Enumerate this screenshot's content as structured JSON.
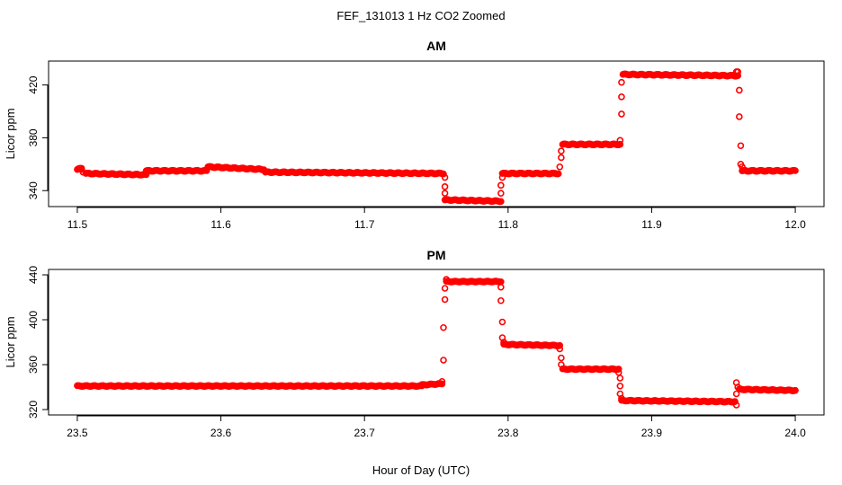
{
  "figure": {
    "title": "FEF_131013  1 Hz CO2 Zoomed",
    "xlabel": "Hour of Day (UTC)"
  },
  "chart_data": [
    {
      "type": "scatter",
      "title": "AM",
      "xlabel": "",
      "ylabel": "Licor ppm",
      "xlim": [
        11.5,
        12.0
      ],
      "ylim": [
        332,
        434
      ],
      "xticks": [
        "11.5",
        "11.6",
        "11.7",
        "11.8",
        "11.9",
        "12.0"
      ],
      "xtick_values": [
        11.5,
        11.6,
        11.7,
        11.8,
        11.9,
        12.0
      ],
      "yticks": [
        "340",
        "380",
        "420"
      ],
      "ytick_values": [
        340,
        380,
        420
      ],
      "marker_color": "#ff0000",
      "marker": "open-circle",
      "grid": false,
      "segments": [
        {
          "x": [
            11.5,
            11.503
          ],
          "y": [
            356,
            357
          ]
        },
        {
          "x": [
            11.506,
            11.548
          ],
          "y": [
            353,
            352
          ]
        },
        {
          "x": [
            11.548,
            11.59
          ],
          "y": [
            355,
            355
          ]
        },
        {
          "x": [
            11.591,
            11.63
          ],
          "y": [
            358,
            356
          ]
        },
        {
          "x": [
            11.631,
            11.755
          ],
          "y": [
            354,
            353
          ]
        },
        {
          "x": [
            11.756,
            11.795
          ],
          "y": [
            333,
            332
          ]
        },
        {
          "x": [
            11.796,
            11.835
          ],
          "y": [
            353,
            353
          ]
        },
        {
          "x": [
            11.838,
            11.878
          ],
          "y": [
            375,
            375
          ]
        },
        {
          "x": [
            11.88,
            11.96
          ],
          "y": [
            428,
            427
          ]
        },
        {
          "x": [
            11.963,
            12.0
          ],
          "y": [
            355,
            355
          ]
        }
      ],
      "transitions": [
        {
          "x": 11.503,
          "y": 356
        },
        {
          "x": 11.504,
          "y": 354
        },
        {
          "x": 11.756,
          "y": 350
        },
        {
          "x": 11.756,
          "y": 343
        },
        {
          "x": 11.756,
          "y": 338
        },
        {
          "x": 11.795,
          "y": 338
        },
        {
          "x": 11.795,
          "y": 344
        },
        {
          "x": 11.796,
          "y": 350
        },
        {
          "x": 11.836,
          "y": 358
        },
        {
          "x": 11.837,
          "y": 365
        },
        {
          "x": 11.837,
          "y": 370
        },
        {
          "x": 11.878,
          "y": 378
        },
        {
          "x": 11.879,
          "y": 398
        },
        {
          "x": 11.879,
          "y": 411
        },
        {
          "x": 11.879,
          "y": 422
        },
        {
          "x": 11.959,
          "y": 430
        },
        {
          "x": 11.96,
          "y": 430
        },
        {
          "x": 11.961,
          "y": 416
        },
        {
          "x": 11.961,
          "y": 396
        },
        {
          "x": 11.962,
          "y": 374
        },
        {
          "x": 11.962,
          "y": 360
        },
        {
          "x": 11.963,
          "y": 358
        }
      ]
    },
    {
      "type": "scatter",
      "title": "PM",
      "xlabel": "",
      "ylabel": "Licor ppm",
      "xlim": [
        23.5,
        24.0
      ],
      "ylim": [
        320,
        440
      ],
      "xticks": [
        "23.5",
        "23.6",
        "23.7",
        "23.8",
        "23.9",
        "24.0"
      ],
      "xtick_values": [
        23.5,
        23.6,
        23.7,
        23.8,
        23.9,
        24.0
      ],
      "yticks": [
        "320",
        "360",
        "400",
        "440"
      ],
      "ytick_values": [
        320,
        360,
        400,
        440
      ],
      "marker_color": "#ff0000",
      "marker": "open-circle",
      "grid": false,
      "segments": [
        {
          "x": [
            23.5,
            23.74
          ],
          "y": [
            341,
            341
          ]
        },
        {
          "x": [
            23.74,
            23.754
          ],
          "y": [
            342,
            343
          ]
        },
        {
          "x": [
            23.757,
            23.795
          ],
          "y": [
            434,
            434
          ]
        },
        {
          "x": [
            23.797,
            23.836
          ],
          "y": [
            378,
            377
          ]
        },
        {
          "x": [
            23.838,
            23.877
          ],
          "y": [
            356,
            356
          ]
        },
        {
          "x": [
            23.879,
            23.958
          ],
          "y": [
            328,
            327
          ]
        },
        {
          "x": [
            23.961,
            24.0
          ],
          "y": [
            338,
            337
          ]
        }
      ],
      "transitions": [
        {
          "x": 23.754,
          "y": 345
        },
        {
          "x": 23.755,
          "y": 364
        },
        {
          "x": 23.755,
          "y": 393
        },
        {
          "x": 23.756,
          "y": 418
        },
        {
          "x": 23.756,
          "y": 428
        },
        {
          "x": 23.757,
          "y": 436
        },
        {
          "x": 23.795,
          "y": 429
        },
        {
          "x": 23.795,
          "y": 417
        },
        {
          "x": 23.796,
          "y": 398
        },
        {
          "x": 23.796,
          "y": 384
        },
        {
          "x": 23.797,
          "y": 380
        },
        {
          "x": 23.836,
          "y": 374
        },
        {
          "x": 23.837,
          "y": 366
        },
        {
          "x": 23.837,
          "y": 360
        },
        {
          "x": 23.877,
          "y": 353
        },
        {
          "x": 23.878,
          "y": 348
        },
        {
          "x": 23.878,
          "y": 341
        },
        {
          "x": 23.878,
          "y": 334
        },
        {
          "x": 23.879,
          "y": 330
        },
        {
          "x": 23.959,
          "y": 324
        },
        {
          "x": 23.959,
          "y": 334
        },
        {
          "x": 23.959,
          "y": 344
        },
        {
          "x": 23.96,
          "y": 340
        }
      ]
    }
  ]
}
